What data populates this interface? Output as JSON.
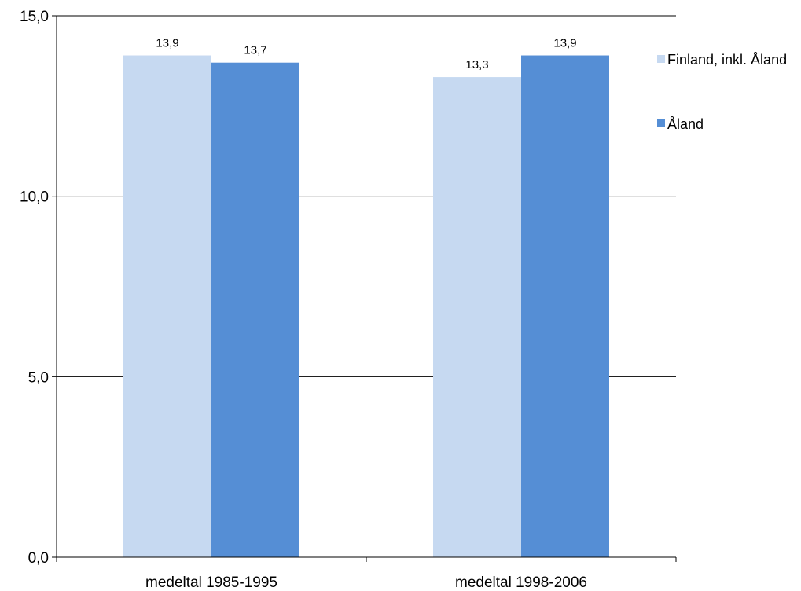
{
  "chart_data": {
    "type": "bar",
    "categories": [
      "medeltal 1985-1995",
      "medeltal 1998-2006"
    ],
    "series": [
      {
        "name": "Finland, inkl. Åland",
        "values": [
          13.9,
          13.3
        ],
        "labels": [
          "13,9",
          "13,3"
        ],
        "color": "#C6D9F1"
      },
      {
        "name": "Åland",
        "values": [
          13.7,
          13.9
        ],
        "labels": [
          "13,7",
          "13,9"
        ],
        "color": "#558ED5"
      }
    ],
    "ylim": [
      0,
      15
    ],
    "yticks": [
      0,
      5,
      10,
      15
    ],
    "ytick_labels": [
      "0,0",
      "5,0",
      "10,0",
      "15,0"
    ],
    "grid": true,
    "legend_position": "right"
  }
}
